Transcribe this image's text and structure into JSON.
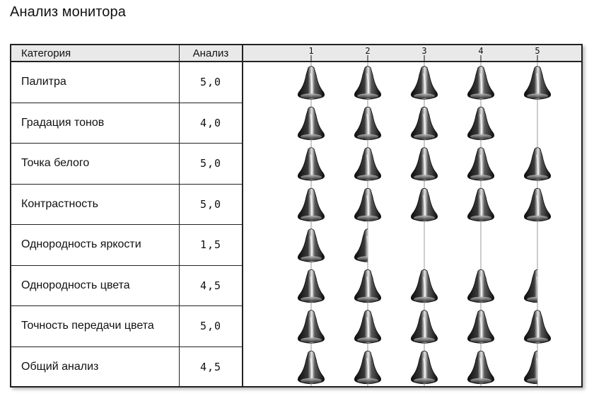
{
  "page": {
    "title": "Анализ монитора"
  },
  "table": {
    "header": {
      "category": "Категория",
      "score": "Анализ"
    },
    "rows": [
      {
        "category": "Палитра",
        "score": "5,0"
      },
      {
        "category": "Градация тонов",
        "score": "4,0"
      },
      {
        "category": "Точка белого",
        "score": "5,0"
      },
      {
        "category": "Контрастность",
        "score": "5,0"
      },
      {
        "category": "Однородность яркости",
        "score": "1,5"
      },
      {
        "category": "Однородность цвета",
        "score": "4,5"
      },
      {
        "category": "Точность передачи цвета",
        "score": "5,0"
      },
      {
        "category": "Общий анализ",
        "score": "4,5"
      }
    ]
  },
  "chart_data": {
    "type": "bar",
    "title": "Анализ монитора",
    "categories": [
      "Палитра",
      "Градация тонов",
      "Точка белого",
      "Контрастность",
      "Однородность яркости",
      "Однородность цвета",
      "Точность передачи цвета",
      "Общий анализ"
    ],
    "values": [
      5.0,
      4.0,
      5.0,
      5.0,
      1.5,
      4.5,
      5.0,
      4.5
    ],
    "scale_ticks": [
      "1",
      "2",
      "3",
      "4",
      "5"
    ],
    "xlim": [
      0,
      5
    ],
    "orientation": "horizontal",
    "mark": "icon-rating",
    "grid": true,
    "colors": {
      "icon_dark": "#1a1a1a",
      "icon_light": "#dddddd",
      "gridline": "#9a9a9a",
      "header_bg": "#e9e9e9",
      "border": "#222222"
    }
  }
}
